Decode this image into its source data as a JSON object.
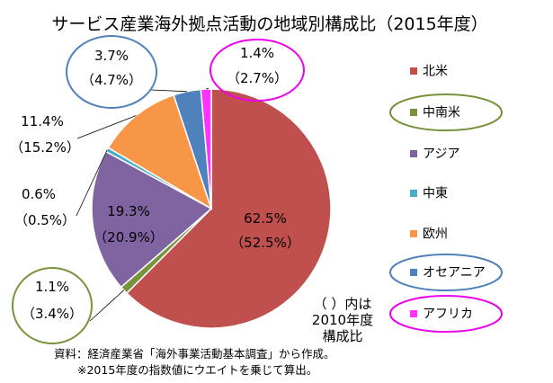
{
  "chart_data": {
    "type": "pie",
    "title": "サービス産業海外拠点活動の地域別構成比（2015年度）",
    "categories": [
      "北米",
      "中南米",
      "アジア",
      "中東",
      "欧州",
      "オセアニア",
      "アフリカ"
    ],
    "series": [
      {
        "values": [
          62.5,
          1.1,
          19.3,
          0.6,
          11.4,
          3.7,
          1.4
        ]
      },
      {
        "values": [
          52.5,
          3.4,
          20.9,
          0.5,
          15.2,
          4.7,
          2.7
        ]
      }
    ],
    "colors": [
      "#c0504d",
      "#77933c",
      "#8064a2",
      "#4bacc6",
      "#f79646",
      "#4f81bd",
      "#ff33ff"
    ],
    "labels_2015": [
      "62.5%",
      "1.1%",
      "19.3%",
      "0.6%",
      "11.4%",
      "3.7%",
      "1.4%"
    ],
    "labels_2010": [
      "（52.5%）",
      "（3.4%）",
      "（20.9%）",
      "（0.5%）",
      "（15.2%）",
      "（4.7%）",
      "（2.7%）"
    ],
    "legend_placement": "right",
    "highlighted_legend_items": [
      "中南米",
      "オセアニア",
      "アフリカ"
    ],
    "highlight_colors": {
      "中南米": "#77933c",
      "オセアニア": "#4f81bd",
      "アフリカ": "#ee00ee"
    },
    "annotation_lines": [
      "（ ）内は",
      "2010年度",
      "構成比"
    ],
    "source_note": "資料：経済産業省「海外事業活動基本調査」から作成。",
    "method_note": "※2015年度の指数値にウエイトを乗じて算出。"
  }
}
